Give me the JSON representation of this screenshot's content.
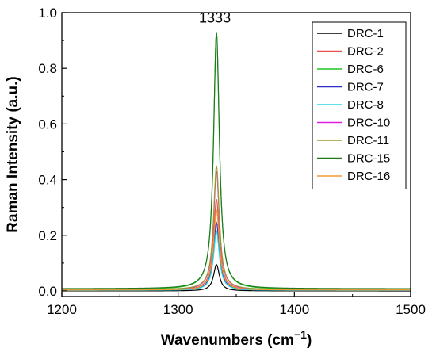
{
  "chart_data": {
    "type": "line",
    "xlabel": "Wavenumbers (cm",
    "xlabel_sup": "−1",
    "xlabel_close": ")",
    "ylabel": "Raman Intensity (a.u.)",
    "xlim": [
      1200,
      1500
    ],
    "ylim": [
      -0.02,
      1.0
    ],
    "xticks": [
      1200,
      1300,
      1400,
      1500
    ],
    "yticks": [
      0.0,
      0.2,
      0.4,
      0.6,
      0.8,
      1.0
    ],
    "xtick_labels": [
      "1200",
      "1300",
      "1400",
      "1500"
    ],
    "ytick_labels": [
      "0.0",
      "0.2",
      "0.4",
      "0.6",
      "0.8",
      "1.0"
    ],
    "grid": false,
    "legend_position": "top-right",
    "annotation": {
      "text": "1333",
      "x": 1333,
      "y": 0.93
    },
    "peak_center": 1333,
    "peak_fwhm": 6,
    "series": [
      {
        "name": "DRC-1",
        "color": "#000000",
        "baseline": 0.0,
        "peak": 0.095
      },
      {
        "name": "DRC-2",
        "color": "#e8514f",
        "baseline": 0.003,
        "peak": 0.33
      },
      {
        "name": "DRC-6",
        "color": "#22c422",
        "baseline": 0.006,
        "peak": 0.93
      },
      {
        "name": "DRC-7",
        "color": "#2b2bc8",
        "baseline": 0.002,
        "peak": 0.245
      },
      {
        "name": "DRC-8",
        "color": "#25d8e8",
        "baseline": 0.002,
        "peak": 0.215
      },
      {
        "name": "DRC-10",
        "color": "#e020e0",
        "baseline": 0.004,
        "peak": 0.43
      },
      {
        "name": "DRC-11",
        "color": "#9a9a2a",
        "baseline": 0.005,
        "peak": 0.45
      },
      {
        "name": "DRC-15",
        "color": "#1e7a1e",
        "baseline": 0.008,
        "peak": 0.93
      },
      {
        "name": "DRC-16",
        "color": "#f09a30",
        "baseline": 0.003,
        "peak": 0.29
      }
    ]
  }
}
